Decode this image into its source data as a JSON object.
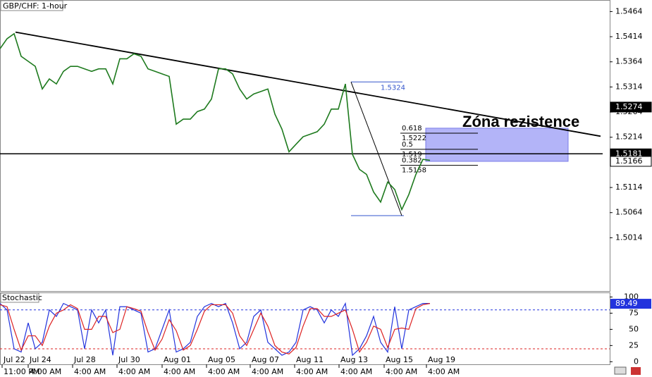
{
  "chart_data": [
    {
      "type": "line",
      "title": "GBP/CHF: 1-hour",
      "x": [
        0,
        1,
        2,
        3,
        4,
        5,
        6,
        7,
        8,
        9,
        10,
        11,
        12,
        13,
        14,
        15,
        16,
        17,
        18,
        19,
        20,
        21,
        22,
        23,
        24,
        25,
        26,
        27,
        28,
        29,
        30,
        31,
        32,
        33,
        34,
        35,
        36,
        37,
        38,
        39,
        40,
        41,
        42,
        43,
        44,
        45,
        46,
        47,
        48,
        49,
        50,
        51,
        52,
        53,
        54,
        55,
        56,
        57,
        58,
        59,
        60,
        61
      ],
      "series": [
        {
          "color": "#1e7a1e",
          "values": [
            1.539,
            1.541,
            1.542,
            1.5375,
            1.5365,
            1.5355,
            1.531,
            1.533,
            1.532,
            1.5345,
            1.5355,
            1.5355,
            1.535,
            1.5345,
            1.535,
            1.535,
            1.532,
            1.537,
            1.537,
            1.538,
            1.5375,
            1.535,
            1.5345,
            1.534,
            1.5335,
            1.524,
            1.525,
            1.525,
            1.5265,
            1.527,
            1.529,
            1.535,
            1.535,
            1.534,
            1.531,
            1.529,
            1.53,
            1.5305,
            1.531,
            1.526,
            1.523,
            1.5185,
            1.52,
            1.5215,
            1.522,
            1.5225,
            1.524,
            1.527,
            1.527,
            1.532,
            1.518,
            1.515,
            1.514,
            1.5105,
            1.5085,
            1.5125,
            1.511,
            1.507,
            1.51,
            1.514,
            1.517,
            1.5168
          ]
        }
      ],
      "xlim": [
        0,
        86.5
      ],
      "ylim": [
        1.4908,
        1.5487
      ],
      "yticks": [
        1.5464,
        1.5414,
        1.5364,
        1.5314,
        1.5264,
        1.5214,
        1.5114,
        1.5064,
        1.5014
      ],
      "price_markers": [
        1.5274,
        1.5181,
        1.5166
      ],
      "trendline": {
        "x": [
          2.2,
          85.2
        ],
        "y": [
          1.5423,
          1.5216
        ]
      },
      "hline": 1.5181,
      "fib": {
        "x": [
          49.8,
          57
        ],
        "high": 1.5324,
        "low": 1.5058,
        "levels": [
          {
            "ratio": 0.618,
            "value": 1.5222
          },
          {
            "ratio": 0.5,
            "value": 1.519
          },
          {
            "ratio": 0.382,
            "value": 1.5158
          }
        ]
      },
      "zone": {
        "label": "Zóna rezistence",
        "x": [
          60.4,
          80.6
        ],
        "y": [
          1.5166,
          1.5232
        ]
      }
    },
    {
      "type": "line",
      "title": "Stochastic",
      "x": [
        0,
        1,
        2,
        3,
        4,
        5,
        6,
        7,
        8,
        9,
        10,
        11,
        12,
        13,
        14,
        15,
        16,
        17,
        18,
        19,
        20,
        21,
        22,
        23,
        24,
        25,
        26,
        27,
        28,
        29,
        30,
        31,
        32,
        33,
        34,
        35,
        36,
        37,
        38,
        39,
        40,
        41,
        42,
        43,
        44,
        45,
        46,
        47,
        48,
        49,
        50,
        51,
        52,
        53,
        54,
        55,
        56,
        57,
        58,
        59,
        60,
        61
      ],
      "series": [
        {
          "color": "#2233dd",
          "values": [
            90,
            80,
            20,
            15,
            60,
            20,
            30,
            80,
            70,
            90,
            85,
            80,
            20,
            80,
            60,
            80,
            10,
            85,
            85,
            80,
            75,
            15,
            20,
            50,
            80,
            15,
            20,
            30,
            70,
            85,
            90,
            85,
            90,
            60,
            20,
            30,
            70,
            80,
            30,
            20,
            10,
            15,
            30,
            80,
            85,
            80,
            60,
            80,
            70,
            90,
            10,
            20,
            40,
            70,
            30,
            15,
            85,
            20,
            80,
            85,
            90,
            90
          ]
        },
        {
          "color": "#dd2222",
          "values": [
            88,
            85,
            50,
            18,
            40,
            40,
            25,
            55,
            75,
            80,
            88,
            82,
            50,
            50,
            70,
            70,
            45,
            50,
            85,
            82,
            78,
            45,
            18,
            35,
            65,
            48,
            18,
            25,
            50,
            78,
            88,
            88,
            88,
            75,
            40,
            25,
            50,
            75,
            55,
            25,
            15,
            12,
            22,
            55,
            82,
            82,
            70,
            70,
            75,
            80,
            50,
            15,
            30,
            55,
            50,
            22,
            50,
            52,
            50,
            82,
            88,
            90
          ]
        }
      ],
      "xlim": [
        0,
        86.5
      ],
      "ylim": [
        -4,
        107
      ],
      "yticks": [
        100,
        75,
        50,
        25,
        0
      ],
      "levels": [
        {
          "value": 80,
          "color": "#2233dd"
        },
        {
          "value": 20,
          "color": "#dd2222"
        }
      ],
      "marker": 89.49,
      "xticks": [
        {
          "value": 0.3,
          "label": "Jul 22"
        },
        {
          "value": 4,
          "label": "Jul 24"
        },
        {
          "value": 10.3,
          "label": "Jul 28"
        },
        {
          "value": 16.6,
          "label": "Jul 30"
        },
        {
          "value": 23,
          "label": "Aug 01"
        },
        {
          "value": 29.3,
          "label": "Aug 05"
        },
        {
          "value": 35.5,
          "label": "Aug 07"
        },
        {
          "value": 41.8,
          "label": "Aug 11"
        },
        {
          "value": 48.1,
          "label": "Aug 13"
        },
        {
          "value": 54.5,
          "label": "Aug 15"
        },
        {
          "value": 60.5,
          "label": "Aug 19"
        }
      ],
      "xtick_times": [
        "11:00 PM",
        "4:00 AM",
        "4:00 AM",
        "4:00 AM",
        "4:00 AM",
        "4:00 AM",
        "4:00 AM",
        "4:00 AM",
        "4:00 AM",
        "4:00 AM",
        "4:00 AM"
      ]
    }
  ]
}
